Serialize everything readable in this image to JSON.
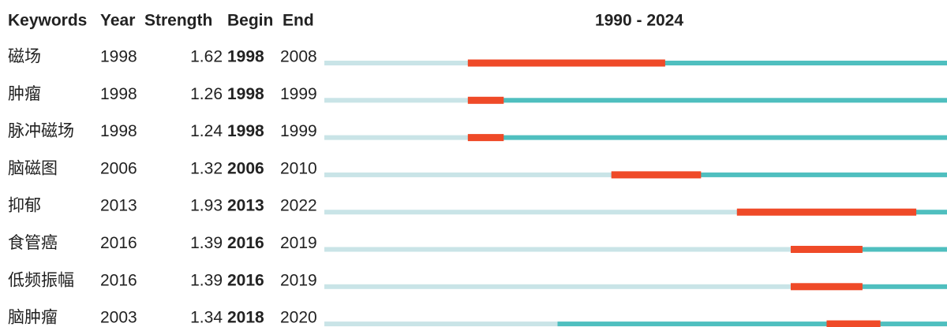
{
  "chart_data": {
    "type": "burst",
    "columns": [
      "Keywords",
      "Year",
      "Strength",
      "Begin",
      "End"
    ],
    "timeline_label": "1990 - 2024",
    "xlim": [
      1990,
      2024
    ],
    "colors": {
      "base": "#c9e4e7",
      "active": "#4fbfbf",
      "burst": "#ef4a28"
    },
    "rows": [
      {
        "keyword": "磁场",
        "year": 1998,
        "strength": 1.62,
        "begin": 1998,
        "end": 2008
      },
      {
        "keyword": "肿瘤",
        "year": 1998,
        "strength": 1.26,
        "begin": 1998,
        "end": 1999
      },
      {
        "keyword": "脉冲磁场",
        "year": 1998,
        "strength": 1.24,
        "begin": 1998,
        "end": 1999
      },
      {
        "keyword": "脑磁图",
        "year": 2006,
        "strength": 1.32,
        "begin": 2006,
        "end": 2010
      },
      {
        "keyword": "抑郁",
        "year": 2013,
        "strength": 1.93,
        "begin": 2013,
        "end": 2022
      },
      {
        "keyword": "食管癌",
        "year": 2016,
        "strength": 1.39,
        "begin": 2016,
        "end": 2019
      },
      {
        "keyword": "低频振幅",
        "year": 2016,
        "strength": 1.39,
        "begin": 2016,
        "end": 2019
      },
      {
        "keyword": "脑肿瘤",
        "year": 2003,
        "strength": 1.34,
        "begin": 2018,
        "end": 2020
      }
    ]
  }
}
